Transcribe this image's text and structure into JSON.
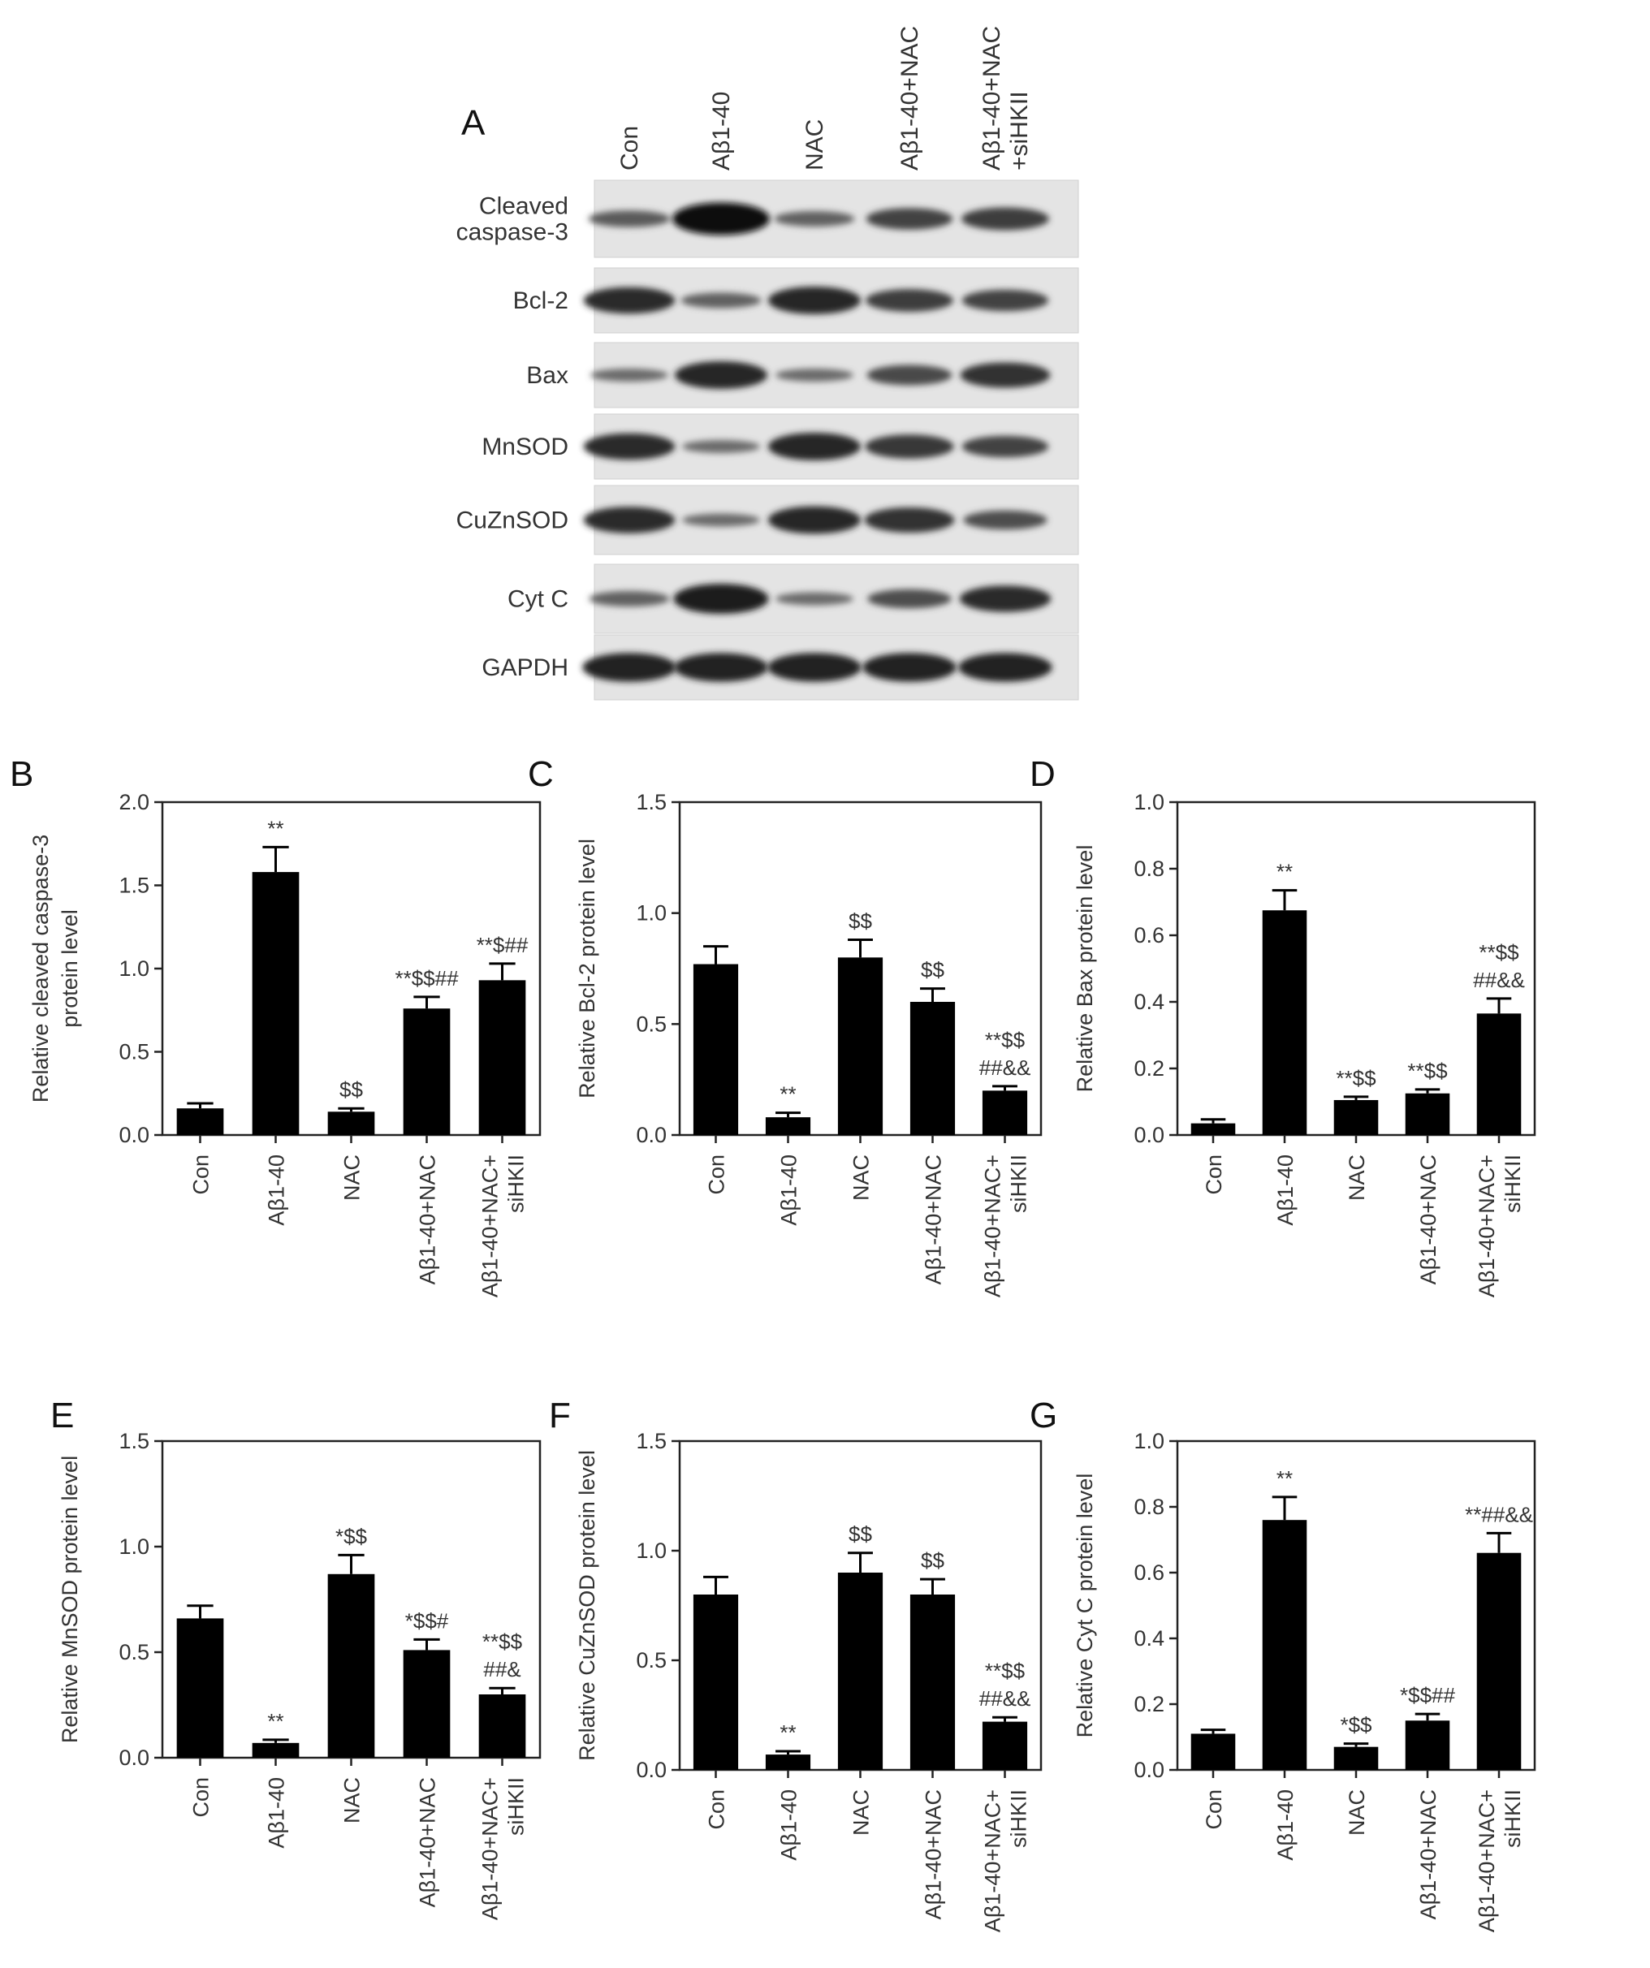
{
  "panel_a": {
    "letter": "A",
    "lanes": [
      [
        "Con"
      ],
      [
        "Aβ1-40"
      ],
      [
        "NAC"
      ],
      [
        "Aβ1-40+NAC"
      ],
      [
        "Aβ1-40+NAC",
        "+siHKII"
      ]
    ],
    "blots": [
      {
        "label": [
          "Cleaved",
          "caspase-3"
        ],
        "intensity": [
          0.35,
          1.0,
          0.3,
          0.55,
          0.6
        ]
      },
      {
        "label": [
          "Bcl-2"
        ],
        "intensity": [
          0.75,
          0.3,
          0.8,
          0.6,
          0.55
        ]
      },
      {
        "label": [
          "Bax"
        ],
        "intensity": [
          0.2,
          0.8,
          0.2,
          0.5,
          0.7
        ]
      },
      {
        "label": [
          "MnSOD"
        ],
        "intensity": [
          0.75,
          0.2,
          0.8,
          0.65,
          0.55
        ]
      },
      {
        "label": [
          "CuZnSOD"
        ],
        "intensity": [
          0.75,
          0.2,
          0.8,
          0.7,
          0.45
        ]
      },
      {
        "label": [
          "Cyt C"
        ],
        "intensity": [
          0.3,
          0.9,
          0.2,
          0.45,
          0.75
        ]
      },
      {
        "label": [
          "GAPDH"
        ],
        "intensity": [
          0.85,
          0.85,
          0.85,
          0.85,
          0.85
        ]
      }
    ]
  },
  "chart_data": [
    {
      "panel": "B",
      "type": "bar",
      "categories": [
        "Con",
        "Aβ1-40",
        "NAC",
        "Aβ1-40+NAC",
        "Aβ1-40+NAC+ siHKII"
      ],
      "values": [
        0.16,
        1.58,
        0.14,
        0.76,
        0.93
      ],
      "errors": [
        0.03,
        0.15,
        0.02,
        0.07,
        0.1
      ],
      "annotations": [
        [
          ""
        ],
        [
          "**"
        ],
        [
          "$$"
        ],
        [
          "**$$##"
        ],
        [
          "**$##"
        ]
      ],
      "ylabel": [
        "Relative cleaved caspase-3",
        "protein level"
      ],
      "ylim": [
        0,
        2.0
      ],
      "yticks": [
        "0.0",
        "0.5",
        "1.0",
        "1.5",
        "2.0"
      ]
    },
    {
      "panel": "C",
      "type": "bar",
      "categories": [
        "Con",
        "Aβ1-40",
        "NAC",
        "Aβ1-40+NAC",
        "Aβ1-40+NAC+ siHKII"
      ],
      "values": [
        0.77,
        0.08,
        0.8,
        0.6,
        0.2
      ],
      "errors": [
        0.08,
        0.02,
        0.08,
        0.06,
        0.02
      ],
      "annotations": [
        [
          ""
        ],
        [
          "**"
        ],
        [
          "$$"
        ],
        [
          "$$"
        ],
        [
          "**$$",
          "##&&"
        ]
      ],
      "ylabel": [
        "Relative Bcl-2 protein level"
      ],
      "ylim": [
        0,
        1.5
      ],
      "yticks": [
        "0.0",
        "0.5",
        "1.0",
        "1.5"
      ]
    },
    {
      "panel": "D",
      "type": "bar",
      "categories": [
        "Con",
        "Aβ1-40",
        "NAC",
        "Aβ1-40+NAC",
        "Aβ1-40+NAC+ siHKII"
      ],
      "values": [
        0.035,
        0.675,
        0.105,
        0.125,
        0.365
      ],
      "errors": [
        0.012,
        0.06,
        0.01,
        0.012,
        0.045
      ],
      "annotations": [
        [
          ""
        ],
        [
          "**"
        ],
        [
          "**$$"
        ],
        [
          "**$$"
        ],
        [
          "**$$",
          "##&&"
        ]
      ],
      "ylabel": [
        "Relative Bax protein level"
      ],
      "ylim": [
        0,
        1.0
      ],
      "yticks": [
        "0.0",
        "0.2",
        "0.4",
        "0.6",
        "0.8",
        "1.0"
      ]
    },
    {
      "panel": "E",
      "type": "bar",
      "categories": [
        "Con",
        "Aβ1-40",
        "NAC",
        "Aβ1-40+NAC",
        "Aβ1-40+NAC+ siHKII"
      ],
      "values": [
        0.66,
        0.07,
        0.87,
        0.51,
        0.3
      ],
      "errors": [
        0.06,
        0.015,
        0.09,
        0.05,
        0.03
      ],
      "annotations": [
        [
          ""
        ],
        [
          "**"
        ],
        [
          "*$$"
        ],
        [
          "*$$#"
        ],
        [
          "**$$",
          "##&"
        ]
      ],
      "ylabel": [
        "Relative MnSOD protein level"
      ],
      "ylim": [
        0,
        1.5
      ],
      "yticks": [
        "0.0",
        "0.5",
        "1.0",
        "1.5"
      ]
    },
    {
      "panel": "F",
      "type": "bar",
      "categories": [
        "Con",
        "Aβ1-40",
        "NAC",
        "Aβ1-40+NAC",
        "Aβ1-40+NAC+ siHKII"
      ],
      "values": [
        0.8,
        0.07,
        0.9,
        0.8,
        0.22
      ],
      "errors": [
        0.08,
        0.015,
        0.09,
        0.07,
        0.02
      ],
      "annotations": [
        [
          ""
        ],
        [
          "**"
        ],
        [
          "$$"
        ],
        [
          "$$"
        ],
        [
          "**$$",
          "##&&"
        ]
      ],
      "ylabel": [
        "Relative CuZnSOD protein level"
      ],
      "ylim": [
        0,
        1.5
      ],
      "yticks": [
        "0.0",
        "0.5",
        "1.0",
        "1.5"
      ]
    },
    {
      "panel": "G",
      "type": "bar",
      "categories": [
        "Con",
        "Aβ1-40",
        "NAC",
        "Aβ1-40+NAC",
        "Aβ1-40+NAC+ siHKII"
      ],
      "values": [
        0.11,
        0.76,
        0.07,
        0.15,
        0.66
      ],
      "errors": [
        0.012,
        0.07,
        0.01,
        0.02,
        0.06
      ],
      "annotations": [
        [
          ""
        ],
        [
          "**"
        ],
        [
          "*$$"
        ],
        [
          "*$$##"
        ],
        [
          "**##&&"
        ]
      ],
      "ylabel": [
        "Relative Cyt C protein level"
      ],
      "ylim": [
        0,
        1.0
      ],
      "yticks": [
        "0.0",
        "0.2",
        "0.4",
        "0.6",
        "0.8",
        "1.0"
      ]
    }
  ]
}
